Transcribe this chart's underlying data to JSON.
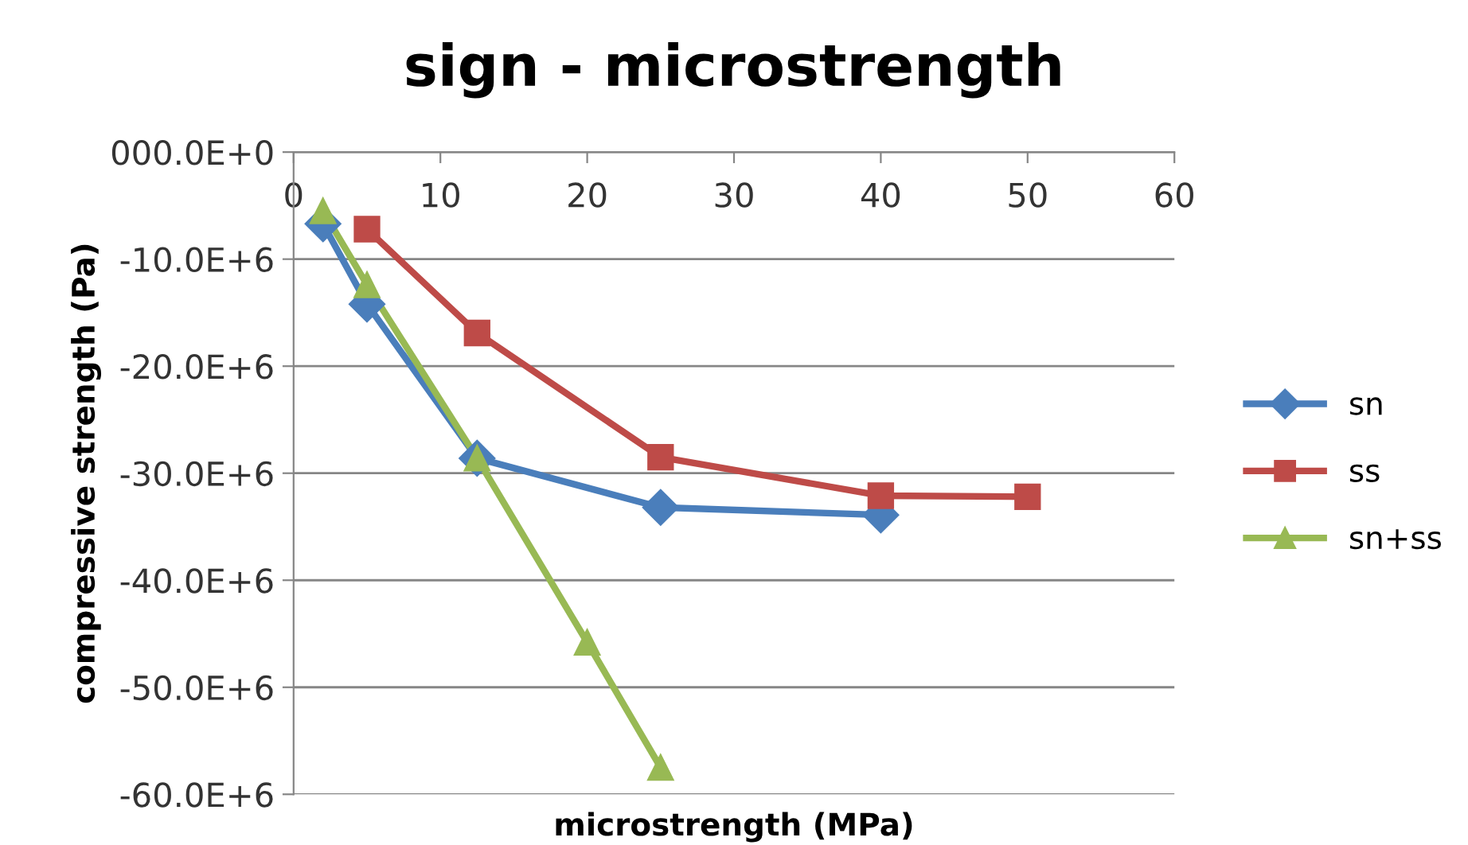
{
  "chart_data": {
    "type": "line",
    "title": "sign - microstrength",
    "xlabel": "microstrength (MPa)",
    "ylabel": "compressive strength (Pa)",
    "xlim": [
      0,
      60
    ],
    "xticks": [
      0,
      10,
      20,
      30,
      40,
      50,
      60
    ],
    "ylim": [
      -60000000,
      0
    ],
    "yticks": [
      {
        "value": 0,
        "label": "000.0E+0"
      },
      {
        "value": -10000000,
        "label": "-10.0E+6"
      },
      {
        "value": -20000000,
        "label": "-20.0E+6"
      },
      {
        "value": -30000000,
        "label": "-30.0E+6"
      },
      {
        "value": -40000000,
        "label": "-40.0E+6"
      },
      {
        "value": -50000000,
        "label": "-50.0E+6"
      },
      {
        "value": -60000000,
        "label": "-60.0E+6"
      }
    ],
    "grid": "y",
    "legend": "right",
    "series": [
      {
        "name": "sn",
        "color": "#4a7ebb",
        "marker": "diamond",
        "x": [
          2,
          5,
          12.5,
          25,
          40
        ],
        "values": [
          -6700000,
          -14200000,
          -28600000,
          -33200000,
          -33900000
        ]
      },
      {
        "name": "ss",
        "color": "#be4b48",
        "marker": "square",
        "x": [
          5,
          12.5,
          25,
          40,
          50
        ],
        "values": [
          -7200000,
          -16900000,
          -28500000,
          -32100000,
          -32200000
        ]
      },
      {
        "name": "sn+ss",
        "color": "#98b954",
        "marker": "triangle",
        "x": [
          2,
          5,
          12.5,
          20,
          25
        ],
        "values": [
          -5500000,
          -12400000,
          -28600000,
          -45800000,
          -57500000
        ]
      }
    ]
  }
}
